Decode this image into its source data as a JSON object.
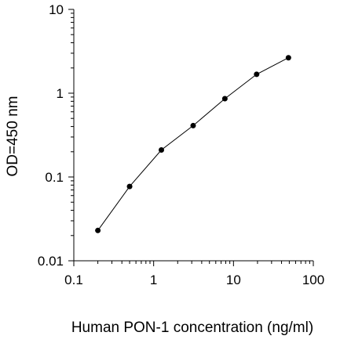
{
  "chart_data": {
    "type": "line",
    "title": "",
    "xlabel": "Human PON-1 concentration (ng/ml)",
    "ylabel": "OD=450 nm",
    "xscale": "log",
    "yscale": "log",
    "xlim": [
      0.1,
      100
    ],
    "ylim": [
      0.01,
      10
    ],
    "x_ticks": [
      "0.1",
      "1",
      "10",
      "100"
    ],
    "y_ticks": [
      "0.01",
      "0.1",
      "1",
      "10"
    ],
    "grid": false,
    "legend": "none",
    "series": [
      {
        "x": [
          0.2,
          0.5,
          1.25,
          3.125,
          7.8,
          19.5,
          48.8
        ],
        "y": [
          0.023,
          0.077,
          0.21,
          0.41,
          0.86,
          1.68,
          2.65
        ],
        "color": "#000000",
        "marker": "circle"
      }
    ]
  }
}
